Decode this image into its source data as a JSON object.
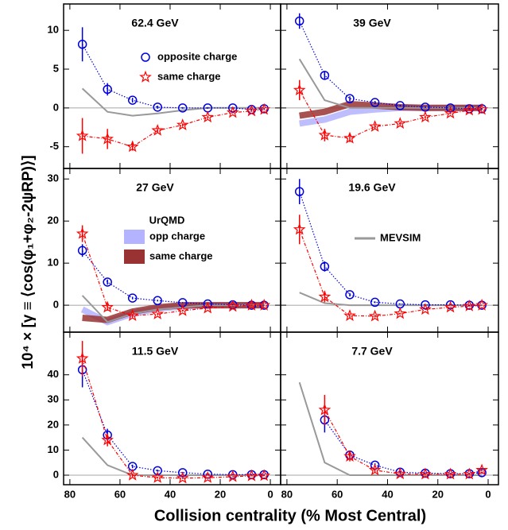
{
  "x_axis": {
    "label": "Collision centrality (% Most Central)",
    "lim": [
      82.5,
      -4.1
    ],
    "ticks": [
      80,
      60,
      40,
      20,
      0
    ]
  },
  "y_label": "10⁴ × [γ ≡ ⟨cos(φ₁+φ₂-2ψRP)⟩]",
  "chart_data": [
    {
      "type": "line",
      "title": "62.4 GeV",
      "ylim": [
        -7.8,
        13.4
      ],
      "yticks": [
        -5,
        0,
        5,
        10
      ],
      "ytick_labels": true,
      "legend": true,
      "x": [
        75,
        65,
        55,
        45,
        35,
        25,
        15,
        7.5,
        2.5
      ],
      "series": [
        {
          "style": "line",
          "color": "#999999",
          "values": [
            2.5,
            -0.5,
            -1.0,
            -0.7,
            -0.3,
            0,
            0,
            0,
            0
          ]
        },
        {
          "name": "opposite charge",
          "style": "marker",
          "marker": "circle",
          "color": "#0000dd",
          "values": [
            8.2,
            2.4,
            1.0,
            0.1,
            0.0,
            0.0,
            0.0,
            -0.2,
            -0.1
          ],
          "errors": [
            2.2,
            0.8,
            0.3,
            0.2,
            0.1,
            0.1,
            0.1,
            0.1,
            0.1
          ]
        },
        {
          "name": "same charge",
          "style": "marker",
          "marker": "star",
          "color": "#ff0000",
          "values": [
            -3.6,
            -4.0,
            -5.0,
            -2.9,
            -2.2,
            -1.2,
            -0.6,
            -0.4,
            -0.2
          ],
          "errors": [
            2.3,
            1.3,
            0.5,
            0.3,
            0.2,
            0.2,
            0.1,
            0.1,
            0.1
          ]
        }
      ]
    },
    {
      "type": "line",
      "title": "39 GeV",
      "ylim": [
        -7.8,
        13.4
      ],
      "yticks": [
        -5,
        0,
        5,
        10
      ],
      "ytick_labels": false,
      "legend": false,
      "x": [
        75,
        65,
        55,
        45,
        35,
        25,
        15,
        7.5,
        2.5
      ],
      "series": [
        {
          "style": "band",
          "color": "#b3b3ff",
          "values": [
            -2.0,
            -1.5,
            -0.5,
            -0.2,
            0,
            0,
            0,
            0,
            0
          ]
        },
        {
          "style": "band",
          "color": "#993333",
          "values": [
            -1.0,
            -0.5,
            0.5,
            0.3,
            0.1,
            0,
            0,
            0,
            0
          ]
        },
        {
          "style": "line",
          "color": "#999999",
          "values": [
            6.3,
            1.0,
            0,
            0,
            0,
            0,
            0,
            0,
            0
          ]
        },
        {
          "style": "marker",
          "marker": "circle",
          "color": "#0000dd",
          "values": [
            11.2,
            4.2,
            1.2,
            0.7,
            0.3,
            0.1,
            0.0,
            -0.1,
            -0.1
          ],
          "errors": [
            1.0,
            0.5,
            0.3,
            0.2,
            0.1,
            0.1,
            0.1,
            0.1,
            0.1
          ]
        },
        {
          "style": "marker",
          "marker": "star",
          "color": "#ff0000",
          "values": [
            2.3,
            -3.5,
            -3.9,
            -2.4,
            -2.0,
            -1.2,
            -0.7,
            -0.3,
            -0.2
          ],
          "errors": [
            1.3,
            0.8,
            0.5,
            0.3,
            0.2,
            0.2,
            0.1,
            0.1,
            0.1
          ]
        }
      ]
    },
    {
      "type": "line",
      "title": "27 GeV",
      "ylim": [
        -6.4,
        32.5
      ],
      "yticks": [
        0,
        10,
        20,
        30
      ],
      "ytick_labels": true,
      "legend": true,
      "legend_title": "UrQMD",
      "x": [
        75,
        65,
        55,
        45,
        35,
        25,
        15,
        7.5,
        2.5
      ],
      "series": [
        {
          "name": "opp charge",
          "style": "band",
          "color": "#b3b3ff",
          "values": [
            -1.0,
            -4.0,
            -2.0,
            -0.8,
            -0.3,
            0,
            0,
            0,
            0
          ]
        },
        {
          "name": "same charge",
          "style": "band",
          "color": "#993333",
          "values": [
            -3.0,
            -3.5,
            -1.5,
            -0.5,
            0,
            0,
            0,
            0,
            0
          ]
        },
        {
          "style": "line",
          "color": "#999999",
          "values": [
            2.3,
            -4.0,
            -2.0,
            -1.0,
            -0.5,
            0,
            0,
            0,
            0
          ]
        },
        {
          "style": "marker",
          "marker": "circle",
          "color": "#0000dd",
          "values": [
            13.0,
            5.5,
            1.7,
            1.1,
            0.6,
            0.3,
            0.1,
            0.0,
            0.0
          ],
          "errors": [
            1.5,
            0.6,
            0.3,
            0.2,
            0.1,
            0.1,
            0.1,
            0.1,
            0.1
          ]
        },
        {
          "style": "marker",
          "marker": "star",
          "color": "#ff0000",
          "values": [
            17.0,
            -0.5,
            -2.5,
            -2.1,
            -1.3,
            -0.7,
            -0.3,
            0.0,
            0.0
          ],
          "errors": [
            2.0,
            0.8,
            0.4,
            0.3,
            0.2,
            0.1,
            0.1,
            0.1,
            0.1
          ]
        }
      ]
    },
    {
      "type": "line",
      "title": "19.6 GeV",
      "ylim": [
        -6.4,
        32.5
      ],
      "yticks": [
        0,
        10,
        20,
        30
      ],
      "ytick_labels": false,
      "legend": true,
      "x": [
        75,
        65,
        55,
        45,
        35,
        25,
        15,
        7.5,
        2.5
      ],
      "series": [
        {
          "name": "MEVSIM",
          "style": "line",
          "color": "#999999",
          "values": [
            3.0,
            0.5,
            0,
            0,
            0,
            0,
            0,
            0,
            0
          ]
        },
        {
          "style": "marker",
          "marker": "circle",
          "color": "#0000dd",
          "values": [
            27.0,
            9.2,
            2.5,
            0.7,
            0.3,
            0.1,
            0.1,
            0.0,
            0.0
          ],
          "errors": [
            3.0,
            1.2,
            0.4,
            0.2,
            0.1,
            0.1,
            0.1,
            0.1,
            0.1
          ]
        },
        {
          "style": "marker",
          "marker": "star",
          "color": "#ff0000",
          "values": [
            18.0,
            2.0,
            -2.5,
            -2.6,
            -2.0,
            -1.0,
            -0.5,
            -0.2,
            0.0
          ],
          "errors": [
            3.5,
            1.3,
            0.5,
            0.3,
            0.2,
            0.1,
            0.1,
            0.1,
            0.1
          ]
        }
      ]
    },
    {
      "type": "line",
      "title": "11.5 GeV",
      "ylim": [
        -3.8,
        57
      ],
      "yticks": [
        0,
        10,
        20,
        30,
        40
      ],
      "ytick_labels": true,
      "legend": false,
      "x": [
        75,
        65,
        55,
        45,
        35,
        25,
        15,
        7.5,
        2.5
      ],
      "series": [
        {
          "style": "line",
          "color": "#999999",
          "values": [
            15.0,
            4.0,
            0,
            0,
            0,
            0,
            0,
            0,
            0
          ]
        },
        {
          "style": "marker",
          "marker": "circle",
          "color": "#0000dd",
          "values": [
            42.0,
            16.0,
            3.5,
            1.8,
            1.0,
            0.4,
            0.2,
            0.2,
            0.2
          ],
          "errors": [
            7.0,
            2.5,
            0.7,
            0.4,
            0.3,
            0.2,
            0.2,
            0.2,
            0.2
          ]
        },
        {
          "style": "marker",
          "marker": "star",
          "color": "#ff0000",
          "values": [
            46.5,
            14.0,
            0.0,
            -1.0,
            -1.2,
            -1.0,
            -0.6,
            -0.3,
            -0.2
          ],
          "errors": [
            7.0,
            2.5,
            0.7,
            0.4,
            0.3,
            0.2,
            0.2,
            0.2,
            0.2
          ]
        }
      ]
    },
    {
      "type": "line",
      "title": "7.7 GeV",
      "ylim": [
        -3.8,
        57
      ],
      "yticks": [
        0,
        10,
        20,
        30,
        40
      ],
      "ytick_labels": false,
      "legend": false,
      "x": [
        75,
        65,
        55,
        45,
        35,
        25,
        15,
        7.5,
        2.5
      ],
      "series": [
        {
          "style": "line",
          "color": "#999999",
          "values": [
            37.0,
            5.0,
            0,
            0,
            0,
            0,
            0,
            0,
            0
          ]
        },
        {
          "style": "marker",
          "marker": "circle",
          "color": "#0000dd",
          "values": [
            null,
            22.0,
            8.0,
            4.0,
            1.2,
            0.8,
            0.6,
            0.6,
            1.0
          ],
          "errors": [
            null,
            5.0,
            1.8,
            0.7,
            0.4,
            0.3,
            0.3,
            0.3,
            0.4
          ]
        },
        {
          "style": "marker",
          "marker": "star",
          "color": "#ff0000",
          "values": [
            null,
            26.0,
            7.5,
            2.0,
            0.5,
            0.4,
            0.4,
            0.4,
            2.0
          ],
          "errors": [
            null,
            6.0,
            2.0,
            0.7,
            0.4,
            0.3,
            0.3,
            0.3,
            0.4
          ]
        }
      ]
    }
  ]
}
